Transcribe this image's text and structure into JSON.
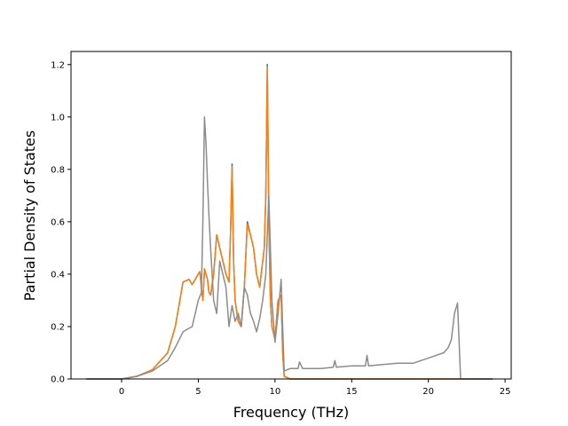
{
  "chart_data": {
    "type": "line",
    "title": "",
    "xlabel": "Frequency (THz)",
    "ylabel": "Partial Density of States",
    "xlim": [
      -3.3,
      25.4
    ],
    "ylim": [
      0.0,
      1.25
    ],
    "grid": false,
    "legend": "none",
    "x_ticks": [
      0,
      5,
      10,
      15,
      20,
      25
    ],
    "y_ticks": [
      0.0,
      0.2,
      0.4,
      0.6,
      0.8,
      1.0,
      1.2
    ],
    "x_tick_labels": [
      "0",
      "5",
      "10",
      "15",
      "20",
      "25"
    ],
    "y_tick_labels": [
      "0.0",
      "0.2",
      "0.4",
      "0.6",
      "0.8",
      "1.0",
      "1.2"
    ],
    "series": [
      {
        "color": "#1f77b4",
        "x": [
          -2.3,
          0.0,
          1.0,
          2.0,
          3.0,
          3.5,
          3.8,
          4.0,
          4.2,
          4.4,
          4.6,
          4.8,
          5.0,
          5.1,
          5.2,
          5.3,
          5.4,
          5.5,
          5.6,
          5.7,
          5.8,
          6.0,
          6.2,
          6.4,
          6.6,
          6.8,
          7.0,
          7.1,
          7.2,
          7.3,
          7.4,
          7.5,
          7.6,
          7.8,
          8.0,
          8.2,
          8.4,
          8.6,
          8.8,
          9.0,
          9.2,
          9.3,
          9.4,
          9.5,
          9.6,
          9.7,
          9.8,
          10.0,
          10.2,
          10.4,
          10.5,
          10.6,
          11.0,
          11.5,
          12.0,
          13.0,
          14.0,
          15.0,
          16.0,
          17.0,
          18.0,
          19.0,
          20.0,
          21.0,
          21.5,
          21.8,
          22.0,
          22.2,
          24.2
        ],
        "y": [
          0.0,
          0.0,
          0.01,
          0.035,
          0.1,
          0.2,
          0.3,
          0.37,
          0.375,
          0.38,
          0.36,
          0.38,
          0.4,
          0.41,
          0.35,
          0.3,
          0.42,
          0.4,
          0.38,
          0.33,
          0.32,
          0.4,
          0.55,
          0.5,
          0.45,
          0.4,
          0.37,
          0.55,
          0.82,
          0.45,
          0.3,
          0.26,
          0.22,
          0.2,
          0.35,
          0.6,
          0.55,
          0.5,
          0.4,
          0.35,
          0.45,
          0.5,
          0.7,
          1.2,
          0.6,
          0.3,
          0.2,
          0.15,
          0.3,
          0.32,
          0.1,
          0.01,
          0.0,
          0.0,
          0.0,
          0.0,
          0.0,
          0.0,
          0.0,
          0.0,
          0.0,
          0.0,
          0.0,
          0.0,
          0.0,
          0.0,
          0.0,
          0.0,
          0.0
        ]
      },
      {
        "color": "#ff7f0e",
        "x": [
          -2.3,
          0.0,
          1.0,
          2.0,
          3.0,
          3.5,
          3.8,
          4.0,
          4.2,
          4.4,
          4.6,
          4.8,
          5.0,
          5.1,
          5.2,
          5.3,
          5.4,
          5.5,
          5.6,
          5.7,
          5.8,
          6.0,
          6.2,
          6.4,
          6.6,
          6.8,
          7.0,
          7.1,
          7.2,
          7.3,
          7.4,
          7.5,
          7.6,
          7.8,
          8.0,
          8.2,
          8.4,
          8.6,
          8.8,
          9.0,
          9.2,
          9.3,
          9.4,
          9.5,
          9.6,
          9.7,
          9.8,
          10.0,
          10.2,
          10.4,
          10.5,
          10.6,
          11.0,
          11.5,
          12.0,
          13.0,
          14.0,
          15.0,
          16.0,
          17.0,
          18.0,
          19.0,
          20.0,
          21.0,
          21.5,
          21.8,
          22.0,
          22.2,
          24.2
        ],
        "y": [
          0.0,
          0.0,
          0.01,
          0.035,
          0.1,
          0.2,
          0.3,
          0.37,
          0.375,
          0.38,
          0.36,
          0.38,
          0.4,
          0.41,
          0.35,
          0.3,
          0.42,
          0.4,
          0.38,
          0.33,
          0.32,
          0.4,
          0.55,
          0.5,
          0.45,
          0.4,
          0.37,
          0.55,
          0.81,
          0.45,
          0.3,
          0.26,
          0.22,
          0.2,
          0.35,
          0.59,
          0.55,
          0.5,
          0.4,
          0.35,
          0.45,
          0.5,
          0.7,
          1.19,
          0.6,
          0.3,
          0.2,
          0.15,
          0.3,
          0.32,
          0.1,
          0.01,
          0.0,
          0.0,
          0.0,
          0.0,
          0.0,
          0.0,
          0.0,
          0.0,
          0.0,
          0.0,
          0.0,
          0.0,
          0.0,
          0.0,
          0.0,
          0.0,
          0.0
        ]
      },
      {
        "color": "#8c8c8c",
        "x": [
          -2.3,
          0.0,
          1.0,
          2.0,
          3.0,
          3.5,
          4.0,
          4.3,
          4.6,
          4.8,
          5.0,
          5.2,
          5.3,
          5.4,
          5.5,
          5.6,
          5.7,
          5.8,
          6.0,
          6.2,
          6.4,
          6.6,
          6.8,
          7.0,
          7.2,
          7.4,
          7.6,
          7.8,
          8.0,
          8.2,
          8.4,
          8.6,
          8.8,
          9.0,
          9.2,
          9.4,
          9.6,
          9.8,
          10.0,
          10.2,
          10.4,
          10.5,
          10.6,
          11.0,
          11.5,
          11.6,
          11.8,
          12.0,
          13.0,
          13.8,
          13.9,
          14.0,
          15.0,
          15.9,
          16.0,
          16.1,
          17.0,
          18.0,
          19.0,
          20.0,
          20.5,
          21.0,
          21.3,
          21.5,
          21.7,
          21.8,
          21.9,
          22.0,
          22.1,
          24.2
        ],
        "y": [
          0.0,
          0.0,
          0.01,
          0.03,
          0.07,
          0.12,
          0.18,
          0.19,
          0.2,
          0.25,
          0.3,
          0.33,
          0.6,
          1.0,
          0.9,
          0.75,
          0.62,
          0.5,
          0.3,
          0.25,
          0.45,
          0.4,
          0.35,
          0.2,
          0.28,
          0.22,
          0.25,
          0.2,
          0.35,
          0.32,
          0.25,
          0.22,
          0.18,
          0.23,
          0.3,
          0.4,
          0.7,
          0.3,
          0.14,
          0.25,
          0.38,
          0.2,
          0.03,
          0.04,
          0.04,
          0.065,
          0.04,
          0.04,
          0.04,
          0.045,
          0.07,
          0.045,
          0.05,
          0.05,
          0.09,
          0.05,
          0.055,
          0.06,
          0.06,
          0.08,
          0.09,
          0.1,
          0.12,
          0.15,
          0.25,
          0.27,
          0.29,
          0.15,
          0.0,
          0.0
        ]
      }
    ]
  }
}
